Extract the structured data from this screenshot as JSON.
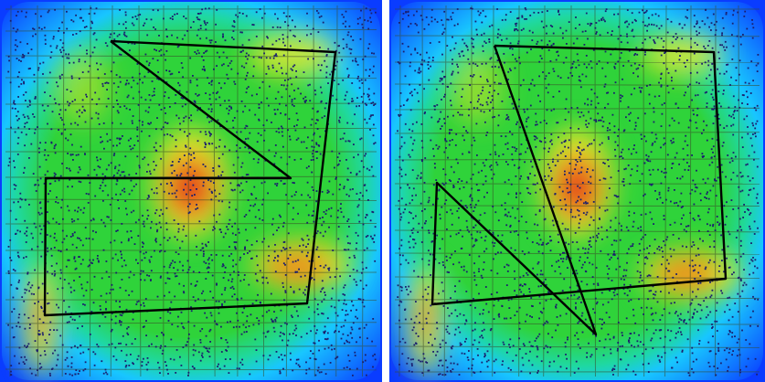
{
  "figure": {
    "panels": [
      {
        "id": "left",
        "path": [
          [
            121,
            45
          ],
          [
            367,
            57
          ],
          [
            336,
            332
          ],
          [
            49,
            345
          ],
          [
            50,
            195
          ],
          [
            318,
            195
          ],
          [
            121,
            45
          ]
        ]
      },
      {
        "id": "right",
        "path": [
          [
            115,
            50
          ],
          [
            355,
            57
          ],
          [
            368,
            305
          ],
          [
            47,
            333
          ],
          [
            52,
            200
          ],
          [
            226,
            366
          ],
          [
            115,
            50
          ]
        ]
      }
    ],
    "colors": {
      "background_blue": "#0a3cff",
      "outer_blue": "#18c6ff",
      "green": "#2fd33a",
      "yellow": "#e8e82a",
      "orange": "#f07a1a",
      "red": "#e0141e",
      "points": "#1b1f6e",
      "grid_lines": "#3a4a2a",
      "trajectory": "#000000"
    }
  }
}
